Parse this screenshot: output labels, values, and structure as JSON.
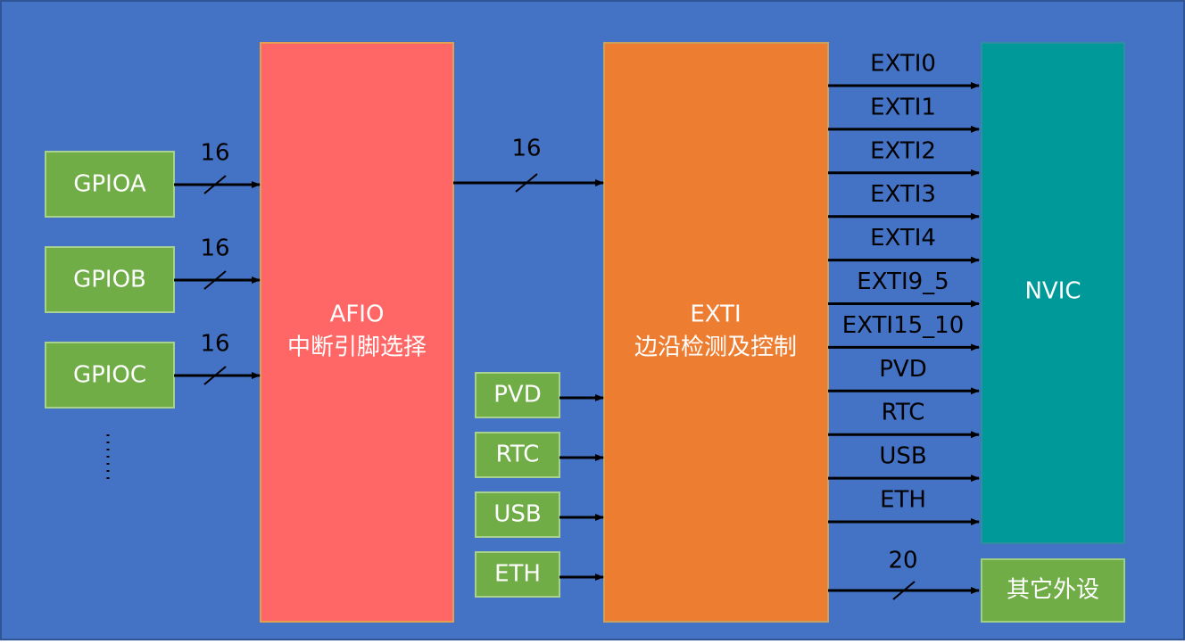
{
  "gpio": {
    "ports": [
      "GPIOA",
      "GPIOB",
      "GPIOC"
    ],
    "bus_widths": [
      16,
      16,
      16
    ]
  },
  "afio": {
    "title": "AFIO",
    "subtitle": "中断引脚选择"
  },
  "afio_to_exti_width": 16,
  "sources": [
    "PVD",
    "RTC",
    "USB",
    "ETH"
  ],
  "exti": {
    "title": "EXTI",
    "subtitle": "边沿检测及控制"
  },
  "outputs": [
    "EXTI0",
    "EXTI1",
    "EXTI2",
    "EXTI3",
    "EXTI4",
    "EXTI9_5",
    "EXTI15_10",
    "PVD",
    "RTC",
    "USB",
    "ETH"
  ],
  "nvic": {
    "label": "NVIC"
  },
  "other": {
    "label": "其它外设",
    "bus_width": 20
  }
}
